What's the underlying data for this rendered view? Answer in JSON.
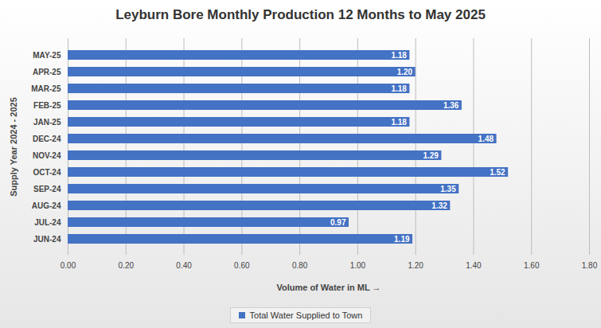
{
  "chart_data": {
    "type": "bar",
    "orientation": "horizontal",
    "title": "Leyburn Bore Monthly Production 12 Months to May 2025",
    "x_label": "Volume of Water in ML",
    "y_label": "Supply Year 2024 - 2025",
    "categories": [
      "MAY-25",
      "APR-25",
      "MAR-25",
      "FEB-25",
      "JAN-25",
      "DEC-24",
      "NOV-24",
      "OCT-24",
      "SEP-24",
      "AUG-24",
      "JUL-24",
      "JUN-24"
    ],
    "series": [
      {
        "name": "Total Water Supplied to Town",
        "color": "#4472c4",
        "values": [
          1.18,
          1.2,
          1.18,
          1.36,
          1.18,
          1.48,
          1.29,
          1.52,
          1.35,
          1.32,
          0.97,
          1.19
        ],
        "value_labels": [
          "1.18",
          "1.20",
          "1.18",
          "1.36",
          "1.18",
          "1.48",
          "1.29",
          "1.52",
          "1.35",
          "1.32",
          "0.97",
          "1.19"
        ]
      }
    ],
    "xlim": [
      0,
      1.8
    ],
    "xticks": [
      {
        "value": 0,
        "label": "0.00"
      },
      {
        "value": 0.2,
        "label": "0.20"
      },
      {
        "value": 0.4,
        "label": "0.40"
      },
      {
        "value": 0.6,
        "label": "0.60"
      },
      {
        "value": 0.8,
        "label": "0.80"
      },
      {
        "value": 1,
        "label": "1.00"
      },
      {
        "value": 1.2,
        "label": "1.20"
      },
      {
        "value": 1.4,
        "label": "1.40"
      },
      {
        "value": 1.6,
        "label": "1.60"
      },
      {
        "value": 1.8,
        "label": "1.80"
      }
    ],
    "grid": true,
    "data_labels": true,
    "legend": "bottom"
  }
}
